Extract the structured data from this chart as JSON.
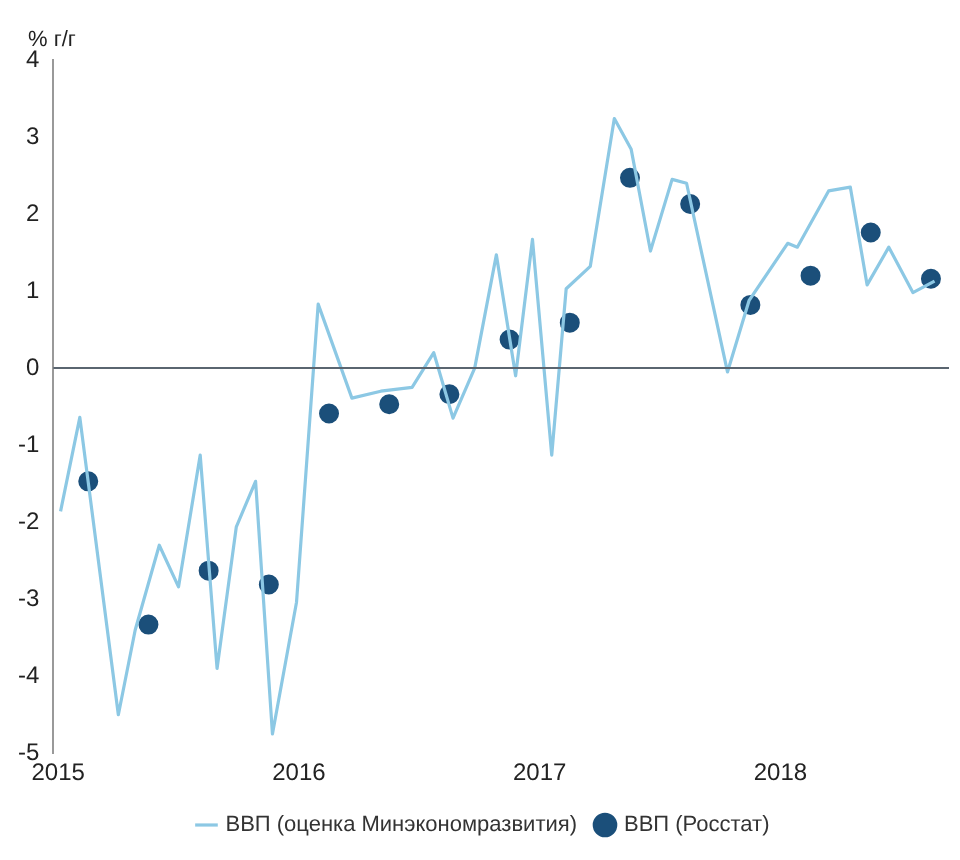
{
  "chart_data": {
    "type": "line",
    "ylabel": "% г/г",
    "xlim": [
      2014.98,
      2018.7
    ],
    "xticks": [
      2015,
      2016,
      2017,
      2018
    ],
    "ylim": [
      -5,
      4
    ],
    "yticks": [
      -5,
      -4,
      -3,
      -2,
      -1,
      0,
      1,
      2,
      3,
      4
    ],
    "grid": false,
    "legend": "bottom",
    "ref_lines": [
      {
        "axis": "y",
        "value": 0,
        "color": "#5a6570"
      }
    ],
    "series": [
      {
        "name": "ВВП (оценка Минэкономразвития)",
        "type": "line",
        "color": "#8cc8e4",
        "marker": "none",
        "x": [
          2015.01,
          2015.09,
          2015.25,
          2015.32,
          2015.42,
          2015.5,
          2015.59,
          2015.66,
          2015.74,
          2015.82,
          2015.89,
          2015.99,
          2016.08,
          2016.22,
          2016.34,
          2016.47,
          2016.56,
          2016.64,
          2016.73,
          2016.82,
          2016.9,
          2016.97,
          2017.05,
          2017.11,
          2017.21,
          2017.31,
          2017.38,
          2017.46,
          2017.55,
          2017.61,
          2017.78,
          2017.87,
          2018.03,
          2018.07,
          2018.2,
          2018.29,
          2018.36,
          2018.45,
          2018.55,
          2018.64
        ],
        "values": [
          -1.86,
          -0.64,
          -4.5,
          -3.4,
          -2.3,
          -2.84,
          -1.13,
          -3.9,
          -2.06,
          -1.47,
          -4.75,
          -3.04,
          0.83,
          -0.39,
          -0.3,
          -0.25,
          0.2,
          -0.65,
          0,
          1.47,
          -0.1,
          1.67,
          -1.13,
          1.03,
          1.32,
          3.24,
          2.84,
          1.52,
          2.45,
          2.4,
          -0.05,
          0.88,
          1.62,
          1.57,
          2.3,
          2.35,
          1.08,
          1.57,
          0.98,
          1.13
        ]
      },
      {
        "name": "ВВП (Росстат)",
        "type": "scatter",
        "color": "#1b4f7a",
        "marker": "circle",
        "x": [
          2015.125,
          2015.375,
          2015.625,
          2015.875,
          2016.125,
          2016.375,
          2016.625,
          2016.875,
          2017.125,
          2017.375,
          2017.625,
          2017.875,
          2018.125,
          2018.375,
          2018.625
        ],
        "values": [
          -1.47,
          -3.33,
          -2.63,
          -2.81,
          -0.59,
          -0.47,
          -0.34,
          0.37,
          0.59,
          2.47,
          2.13,
          0.82,
          1.2,
          1.76,
          1.16
        ]
      }
    ]
  }
}
